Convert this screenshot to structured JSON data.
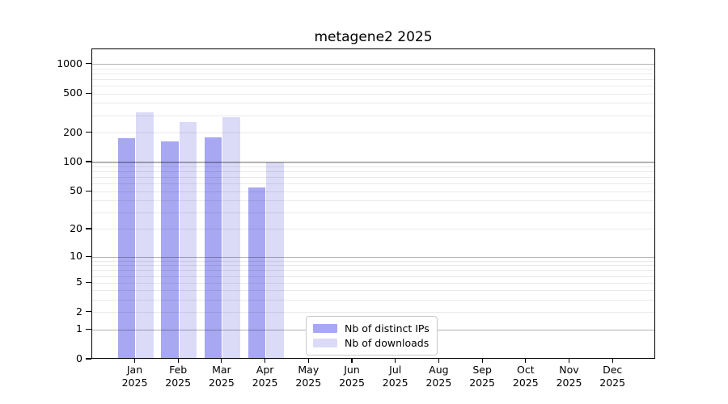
{
  "chart_data": {
    "type": "bar",
    "title": "metagene2 2025",
    "months": [
      "Jan",
      "Feb",
      "Mar",
      "Apr",
      "May",
      "Jun",
      "Jul",
      "Aug",
      "Sep",
      "Oct",
      "Nov",
      "Dec"
    ],
    "year_label": "2025",
    "series": [
      {
        "name": "Nb of distinct IPs",
        "color": "#a8a8f2",
        "values": [
          176,
          163,
          179,
          55,
          null,
          null,
          null,
          null,
          null,
          null,
          null,
          null
        ]
      },
      {
        "name": "Nb of downloads",
        "color": "#dbdbf8",
        "values": [
          323,
          260,
          289,
          100,
          null,
          null,
          null,
          null,
          null,
          null,
          null,
          null
        ]
      }
    ],
    "yscale": "log1p",
    "ytick_labels": [
      "0",
      "1",
      "2",
      "5",
      "10",
      "20",
      "50",
      "100",
      "200",
      "500",
      "1000"
    ],
    "ylim": [
      0,
      1425
    ],
    "xlabel": "",
    "ylabel": "",
    "grid": true,
    "legend_position": "bottom-center"
  }
}
